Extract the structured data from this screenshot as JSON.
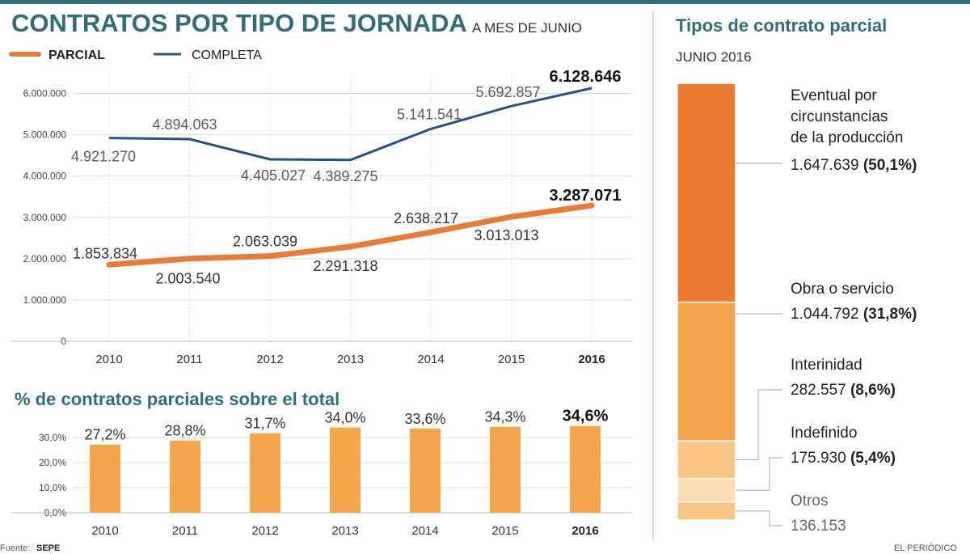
{
  "header": {
    "title": "CONTRATOS POR TIPO DE JORNADA",
    "subtitle": "A MES DE JUNIO",
    "legend_parcial": "PARCIAL",
    "legend_completa": "COMPLETA"
  },
  "colors": {
    "teal": "#2f6e79",
    "line_completa": "#2c4f8a",
    "line_parcial": "#e87c37",
    "bar": "#f5a64a",
    "stack": [
      "#ec7a30",
      "#f5a64a",
      "#f8c585",
      "#fbdcb4",
      "#f8c585"
    ]
  },
  "chart_data": [
    {
      "type": "line",
      "title": "CONTRATOS POR TIPO DE JORNADA",
      "subtitle": "A MES DE JUNIO",
      "x": [
        "2010",
        "2011",
        "2012",
        "2013",
        "2014",
        "2015",
        "2016"
      ],
      "yticks": [
        "0",
        "1.000.000",
        "2.000.000",
        "3.000.000",
        "4.000.000",
        "5.000.000",
        "6.000.000"
      ],
      "ylim": [
        0,
        6500000
      ],
      "grid": true,
      "legend_position": "top-left",
      "series": [
        {
          "name": "PARCIAL",
          "values": [
            1853834,
            2003540,
            2063039,
            2291318,
            2638217,
            3013013,
            3287071
          ],
          "labels": [
            "1.853.834",
            "2.003.540",
            "2.063.039",
            "2.291.318",
            "2.638.217",
            "3.013.013",
            "3.287.071"
          ]
        },
        {
          "name": "COMPLETA",
          "values": [
            4921270,
            4894063,
            4405027,
            4389275,
            5141541,
            5692857,
            6128646
          ],
          "labels": [
            "4.921.270",
            "4.894.063",
            "4.405.027",
            "4.389.275",
            "5.141.541",
            "5.692.857",
            "6.128.646"
          ]
        }
      ]
    },
    {
      "type": "bar",
      "title": "% de contratos parciales sobre el total",
      "categories": [
        "2010",
        "2011",
        "2012",
        "2013",
        "2014",
        "2015",
        "2016"
      ],
      "values": [
        27.2,
        28.8,
        31.7,
        34.0,
        33.6,
        34.3,
        34.6
      ],
      "labels": [
        "27,2%",
        "28,8%",
        "31,7%",
        "34,0%",
        "33,6%",
        "34,3%",
        "34,6%"
      ],
      "yticks": [
        "0,0%",
        "10,0%",
        "20,0%",
        "30,0%"
      ],
      "ylim": [
        0,
        36
      ]
    },
    {
      "type": "bar",
      "stacked": true,
      "title": "Tipos de contrato parcial",
      "subtitle": "JUNIO 2016",
      "series": [
        {
          "name": "Eventual por circunstancias de la producción",
          "value": 1647639,
          "value_label": "1.647.639",
          "pct_label": "(50,1%)"
        },
        {
          "name": "Obra o servicio",
          "value": 1044792,
          "value_label": "1.044.792",
          "pct_label": "(31,8%)"
        },
        {
          "name": "Interinidad",
          "value": 282557,
          "value_label": "282.557",
          "pct_label": "(8,6%)"
        },
        {
          "name": "Indefinido",
          "value": 175930,
          "value_label": "175.930",
          "pct_label": "(5,4%)"
        },
        {
          "name": "Otros",
          "value": 136153,
          "value_label": "136.153",
          "pct_label": ""
        }
      ]
    }
  ],
  "labels": {
    "eventual_lines": [
      "Eventual por",
      "circunstancias",
      "de la producción"
    ]
  },
  "footer": {
    "source_prefix": "Fuente:",
    "source": "SEPE",
    "credit": "EL PERIÓDICO"
  }
}
